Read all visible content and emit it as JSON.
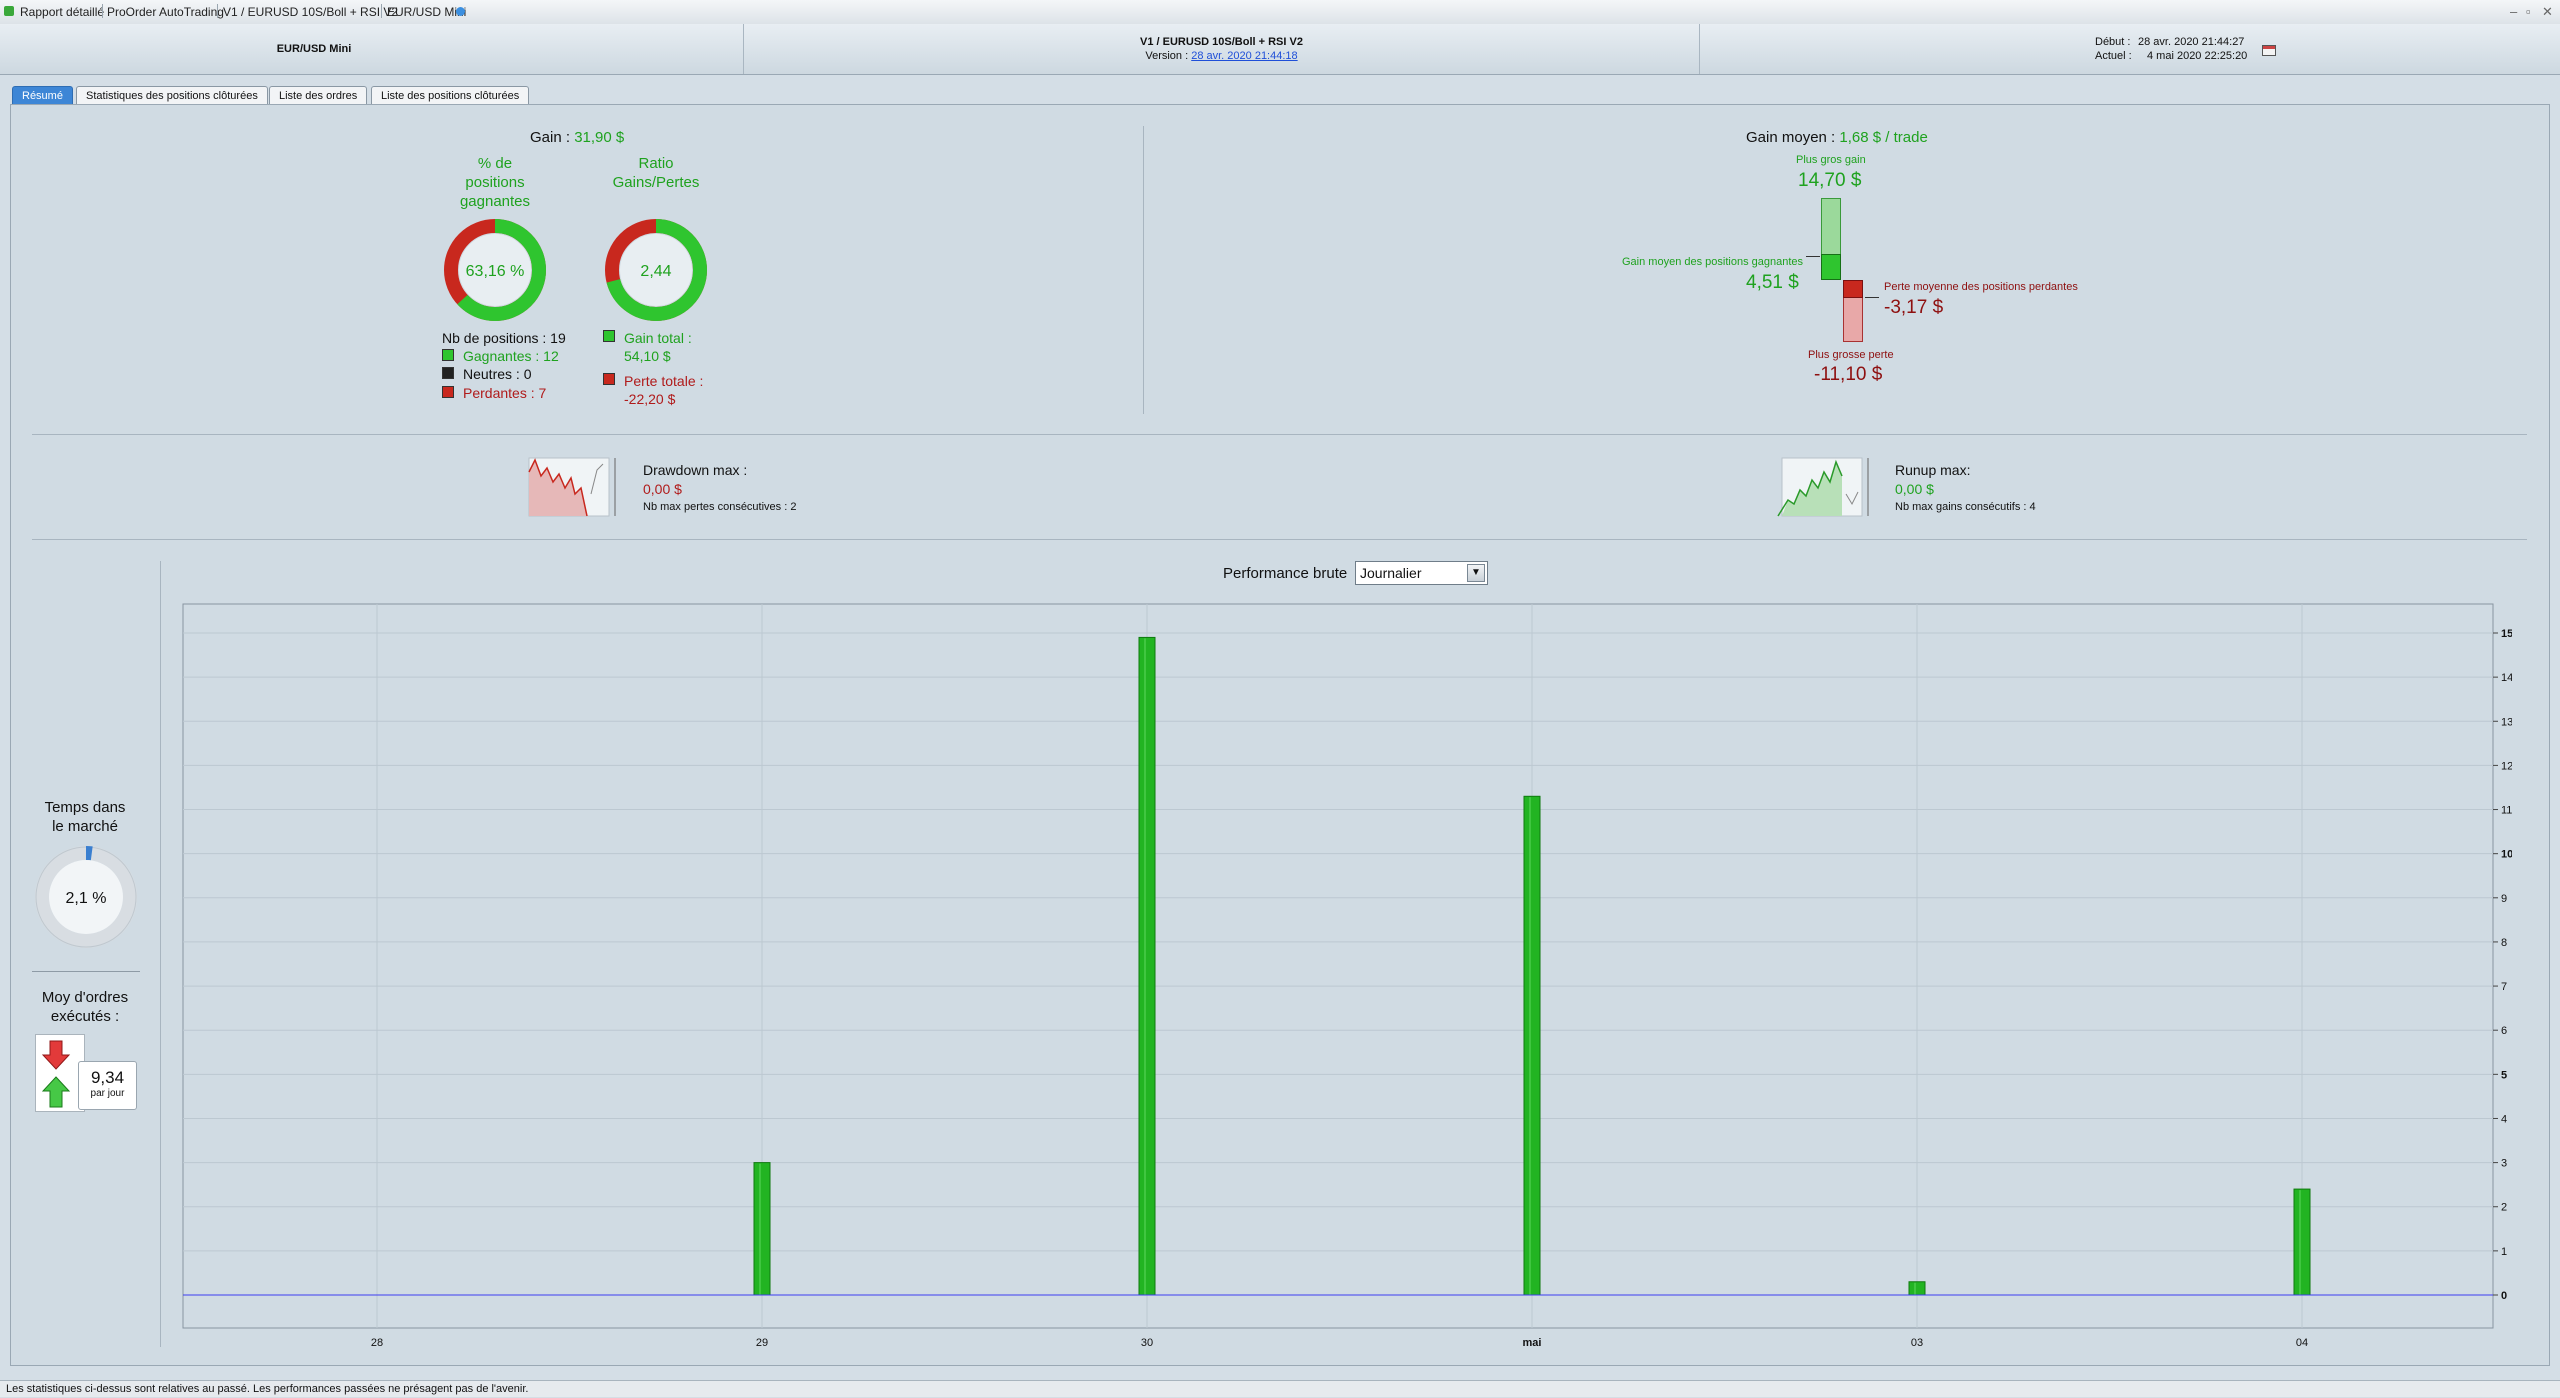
{
  "titlebar": {
    "crumbs": [
      "Rapport détaillé",
      "ProOrder AutoTrading",
      "V1 / EURUSD 10S/Boll + RSI V2",
      "EUR/USD Mini"
    ]
  },
  "header": {
    "instrument": "EUR/USD Mini",
    "strategy": "V1 / EURUSD 10S/Boll + RSI V2",
    "version_label": "Version :",
    "version_link": "28 avr. 2020 21:44:18",
    "debut_label": "Début :",
    "debut_value": "28 avr. 2020 21:44:27",
    "actuel_label": "Actuel :",
    "actuel_value": "4 mai 2020 22:25:20"
  },
  "tabs": [
    "Résumé",
    "Statistiques des positions clôturées",
    "Liste des ordres",
    "Liste des positions clôturées"
  ],
  "summary": {
    "gain_label": "Gain :",
    "gain_value": "31,90 $",
    "pct_title_lines": [
      "% de",
      "positions",
      "gagnantes"
    ],
    "pct_value": "63,16 %",
    "pct_fraction": 0.6316,
    "ratio_title_lines": [
      "Ratio",
      "Gains/Pertes"
    ],
    "ratio_value": "2,44",
    "ratio_fraction": 0.709,
    "nb_positions": "Nb de positions : 19",
    "gagnantes": "Gagnantes : 12",
    "neutres": "Neutres : 0",
    "perdantes": "Perdantes : 7",
    "gain_total_label": "Gain total :",
    "gain_total_value": "54,10 $",
    "perte_totale_label": "Perte totale :",
    "perte_totale_value": "-22,20 $",
    "gain_moyen_label": "Gain moyen :",
    "gain_moyen_value": "1,68 $ / trade",
    "plus_gros_gain_label": "Plus gros gain",
    "plus_gros_gain_value": "14,70 $",
    "gain_moyen_gagnantes_label": "Gain moyen des positions gagnantes",
    "gain_moyen_gagnantes_value": "4,51 $",
    "perte_moyenne_label": "Perte moyenne des positions perdantes",
    "perte_moyenne_value": "-3,17 $",
    "plus_grosse_perte_label": "Plus grosse perte",
    "plus_grosse_perte_value": "-11,10 $"
  },
  "drawdown": {
    "title": "Drawdown max :",
    "value": "0,00 $",
    "sub": "Nb max pertes consécutives : 2"
  },
  "runup": {
    "title": "Runup max:",
    "value": "0,00 $",
    "sub": "Nb max gains consécutifs : 4"
  },
  "market_time": {
    "title_lines": [
      "Temps dans",
      "le marché"
    ],
    "value": "2,1 %",
    "fraction": 0.021
  },
  "orders": {
    "title_lines": [
      "Moy d'ordres",
      "exécutés :"
    ],
    "value": "9,34",
    "unit": "par jour"
  },
  "performance": {
    "label": "Performance brute",
    "period_selected": "Journalier"
  },
  "chart_data": {
    "type": "bar",
    "categories": [
      "28",
      "29",
      "30",
      "mai",
      "03",
      "04"
    ],
    "values": [
      0,
      3.0,
      14.9,
      11.3,
      0.3,
      2.4
    ],
    "ylim": [
      0,
      15.3
    ],
    "yticks": [
      0,
      1,
      2,
      3,
      4,
      5,
      6,
      7,
      8,
      9,
      10,
      11,
      12,
      13,
      14,
      15
    ],
    "grid": true,
    "colors": {
      "bar": "#22b422",
      "bar_edge": "#0e7a0e",
      "zero_line": "#3d3df0"
    }
  },
  "status": {
    "text": "Les statistiques ci-dessus sont relatives au passé. Les performances passées ne présagent pas de l'avenir."
  }
}
